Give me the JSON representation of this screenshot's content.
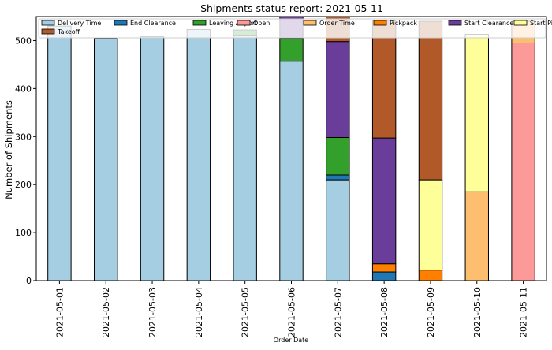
{
  "chart_data": {
    "type": "bar",
    "stacked": true,
    "title": "Shipments status report: 2021-05-11",
    "xlabel": "Order Date",
    "ylabel": "Number of Shipments",
    "ylim": [
      0,
      550
    ],
    "yticks": [
      0,
      100,
      200,
      300,
      400,
      500
    ],
    "legend_position": "top",
    "categories": [
      "2021-05-01",
      "2021-05-02",
      "2021-05-03",
      "2021-05-04",
      "2021-05-05",
      "2021-05-06",
      "2021-05-07",
      "2021-05-08",
      "2021-05-09",
      "2021-05-10",
      "2021-05-11"
    ],
    "series": [
      {
        "name": "Delivery Time",
        "color": "#a6cee3",
        "values": [
          530,
          505,
          508,
          523,
          510,
          457,
          210,
          0,
          0,
          0,
          0
        ]
      },
      {
        "name": "End Clearance",
        "color": "#1f78b4",
        "values": [
          0,
          0,
          0,
          0,
          0,
          0,
          10,
          18,
          0,
          0,
          0
        ]
      },
      {
        "name": "Leaving Airport",
        "color": "#33a02c",
        "values": [
          0,
          0,
          0,
          0,
          12,
          48,
          78,
          0,
          0,
          0,
          0
        ]
      },
      {
        "name": "Open",
        "color": "#fb9a99",
        "values": [
          0,
          0,
          0,
          0,
          0,
          0,
          0,
          0,
          0,
          0,
          495
        ]
      },
      {
        "name": "Order Time",
        "color": "#fdbf6f",
        "values": [
          0,
          0,
          0,
          0,
          0,
          0,
          0,
          0,
          0,
          185,
          45
        ]
      },
      {
        "name": "Pickpack",
        "color": "#ff7f00",
        "values": [
          0,
          0,
          0,
          0,
          0,
          0,
          0,
          17,
          22,
          0,
          0
        ]
      },
      {
        "name": "Start Clearance",
        "color": "#6a3d9a",
        "values": [
          0,
          0,
          0,
          0,
          0,
          45,
          200,
          262,
          0,
          0,
          0
        ]
      },
      {
        "name": "Start PickPack",
        "color": "#ffff99",
        "values": [
          0,
          0,
          0,
          0,
          0,
          0,
          0,
          0,
          188,
          328,
          0
        ]
      },
      {
        "name": "Takeoff",
        "color": "#b15928",
        "values": [
          0,
          0,
          0,
          0,
          0,
          0,
          62,
          245,
          330,
          0,
          0
        ]
      }
    ]
  }
}
